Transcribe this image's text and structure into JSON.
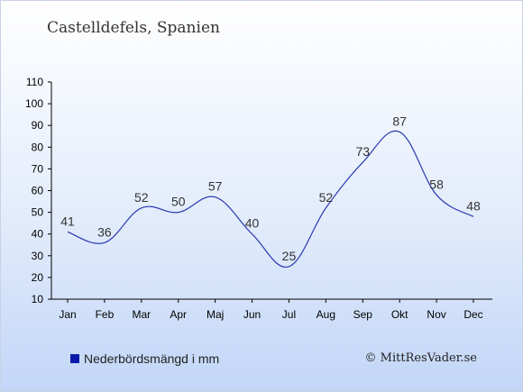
{
  "place_title": "Castelldefels, Spanien",
  "legend_label": "Nederbördsmängd i mm",
  "credit": "© MittResVader.se",
  "colors": {
    "line": "#2a3bb0",
    "text": "#333333",
    "axis": "#000000",
    "swatch": "#0a1aa8"
  },
  "chart_data": {
    "type": "line",
    "categories": [
      "Jan",
      "Feb",
      "Mar",
      "Apr",
      "Maj",
      "Jun",
      "Jul",
      "Aug",
      "Sep",
      "Okt",
      "Nov",
      "Dec"
    ],
    "series": [
      {
        "name": "Nederbördsmängd i mm",
        "values": [
          41,
          36,
          52,
          50,
          57,
          40,
          25,
          52,
          73,
          87,
          58,
          48
        ]
      }
    ],
    "ylim": [
      10,
      110
    ],
    "yticks": [
      10,
      20,
      30,
      40,
      50,
      60,
      70,
      80,
      90,
      100,
      110
    ],
    "grid": false,
    "legend": "bottom-left"
  }
}
